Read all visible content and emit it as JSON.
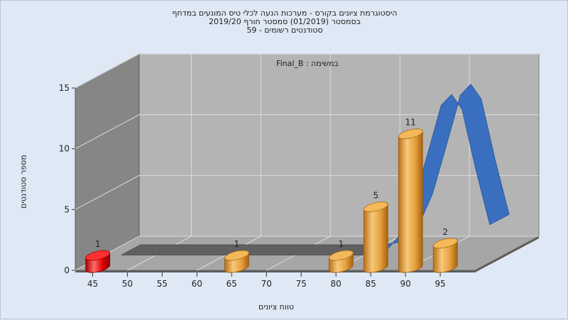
{
  "chart_data": {
    "type": "bar",
    "title": [
      "היסטוגרמת ציונים בקורס - מערכות הנעה לכלי טיס המונעים במדחף",
      "בסמסטר  (01/2019)  סמסטר חורף 2019/20",
      "סטודנטים רשומים - 59"
    ],
    "inner_label": "Final_B : במשימה",
    "xlabel": "טווח ציונים",
    "ylabel": "מספר סטודנטים",
    "ylim": [
      0,
      15
    ],
    "y_ticks": [
      "0",
      "5",
      "10",
      "15"
    ],
    "x_ticks": [
      "45",
      "50",
      "55",
      "60",
      "65",
      "70",
      "75",
      "80",
      "85",
      "90",
      "95"
    ],
    "grid": true,
    "bars": [
      {
        "x": 45,
        "value": 1,
        "label": "1",
        "color": "#e00000"
      },
      {
        "x": 65,
        "value": 1,
        "label": "1",
        "color": "#e8a040"
      },
      {
        "x": 80,
        "value": 1,
        "label": "1",
        "color": "#e8a040"
      },
      {
        "x": 85,
        "value": 5,
        "label": "5",
        "color": "#e8a040"
      },
      {
        "x": 90,
        "value": 11,
        "label": "11",
        "color": "#e8a040"
      },
      {
        "x": 95,
        "value": 2,
        "label": "2",
        "color": "#e8a040"
      }
    ],
    "distribution_curve": {
      "color": "#3a6fc0",
      "shadow_color": "#606060",
      "x": [
        45,
        50,
        55,
        60,
        65,
        70,
        75,
        80,
        83,
        85,
        87,
        89,
        91,
        92.5,
        94,
        96,
        98
      ],
      "y": [
        0,
        0,
        0,
        0,
        0,
        0,
        0,
        0,
        0.3,
        1.6,
        4.2,
        8.2,
        12.3,
        13.2,
        12.0,
        7.0,
        2.5
      ]
    }
  }
}
